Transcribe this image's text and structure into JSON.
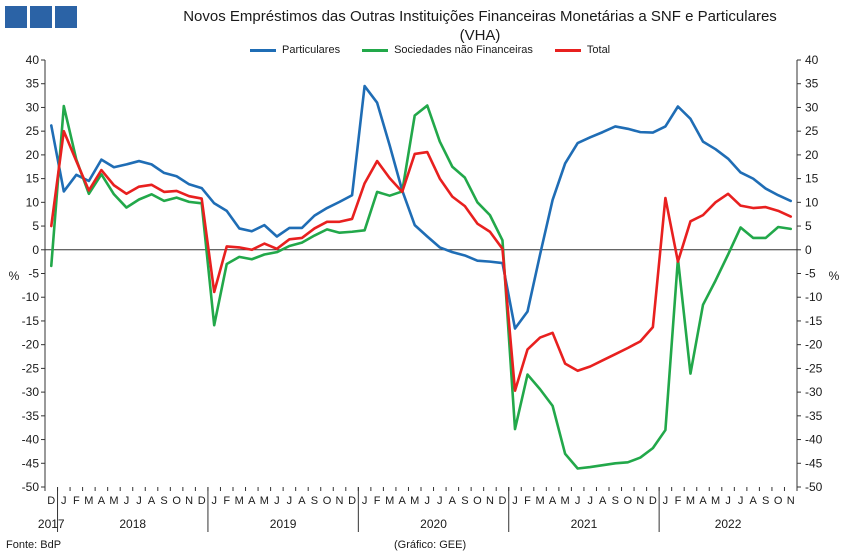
{
  "header": {
    "title_line1": "Novos Empréstimos das Outras Instituições Financeiras Monetárias a SNF e Particulares",
    "title_line2": "(VHA)"
  },
  "footer": {
    "source": "Fonte: BdP",
    "credit": "(Gráfico: GEE)"
  },
  "colors": {
    "Particulares": "#1f6db5",
    "Sociedades não Financeiras": "#22a84a",
    "Total": "#e8201f"
  },
  "chart_data": {
    "type": "line",
    "title": "Novos Empréstimos das Outras Instituições Financeiras Monetárias a SNF e Particulares (VHA)",
    "ylabel_left": "%",
    "ylabel_right": "%",
    "ylim": [
      -50,
      40
    ],
    "yticks": [
      40,
      35,
      30,
      25,
      20,
      15,
      10,
      5,
      0,
      -5,
      -10,
      -15,
      -20,
      -25,
      -30,
      -35,
      -40,
      -45,
      -50
    ],
    "legend_position": "top",
    "grid": false,
    "month_labels": [
      "D",
      "J",
      "F",
      "M",
      "A",
      "M",
      "J",
      "J",
      "A",
      "S",
      "O",
      "N",
      "D",
      "J",
      "F",
      "M",
      "A",
      "M",
      "J",
      "J",
      "A",
      "S",
      "O",
      "N",
      "D",
      "J",
      "F",
      "M",
      "A",
      "M",
      "J",
      "J",
      "A",
      "S",
      "O",
      "N",
      "D",
      "J",
      "F",
      "M",
      "A",
      "M",
      "J",
      "J",
      "A",
      "S",
      "O",
      "N",
      "D",
      "J",
      "F",
      "M",
      "A",
      "M",
      "J",
      "J",
      "A",
      "S",
      "O",
      "N"
    ],
    "year_labels": [
      {
        "label": "2017",
        "start": 0,
        "end": 0
      },
      {
        "label": "2018",
        "start": 1,
        "end": 12
      },
      {
        "label": "2019",
        "start": 13,
        "end": 24
      },
      {
        "label": "2020",
        "start": 25,
        "end": 36
      },
      {
        "label": "2021",
        "start": 37,
        "end": 48
      },
      {
        "label": "2022",
        "start": 49,
        "end": 59
      }
    ],
    "x": [
      "2017-12",
      "2018-01",
      "2018-02",
      "2018-03",
      "2018-04",
      "2018-05",
      "2018-06",
      "2018-07",
      "2018-08",
      "2018-09",
      "2018-10",
      "2018-11",
      "2018-12",
      "2019-01",
      "2019-02",
      "2019-03",
      "2019-04",
      "2019-05",
      "2019-06",
      "2019-07",
      "2019-08",
      "2019-09",
      "2019-10",
      "2019-11",
      "2019-12",
      "2020-01",
      "2020-02",
      "2020-03",
      "2020-04",
      "2020-05",
      "2020-06",
      "2020-07",
      "2020-08",
      "2020-09",
      "2020-10",
      "2020-11",
      "2020-12",
      "2021-01",
      "2021-02",
      "2021-03",
      "2021-04",
      "2021-05",
      "2021-06",
      "2021-07",
      "2021-08",
      "2021-09",
      "2021-10",
      "2021-11",
      "2021-12",
      "2022-01",
      "2022-02",
      "2022-03",
      "2022-04",
      "2022-05",
      "2022-06",
      "2022-07",
      "2022-08",
      "2022-09",
      "2022-10",
      "2022-11"
    ],
    "series": [
      {
        "name": "Particulares",
        "values": [
          26.2,
          12.3,
          15.8,
          14.5,
          19.0,
          17.4,
          18.0,
          18.7,
          18.0,
          16.2,
          15.5,
          13.8,
          13.0,
          9.8,
          8.2,
          4.5,
          3.9,
          5.2,
          2.8,
          4.6,
          4.6,
          7.2,
          8.8,
          10.1,
          11.5,
          34.5,
          31.0,
          22.0,
          12.5,
          5.2,
          2.8,
          0.5,
          -0.5,
          -1.2,
          -2.3,
          -2.5,
          -2.8,
          -16.6,
          -13.0,
          -1.0,
          10.5,
          18.2,
          22.5,
          23.7,
          24.8,
          26.0,
          25.5,
          24.8,
          24.7,
          26.0,
          30.2,
          27.6,
          22.8,
          21.2,
          19.2,
          16.3,
          15.0,
          12.9,
          11.5,
          10.3
        ]
      },
      {
        "name": "Sociedades não Financeiras",
        "values": [
          -3.4,
          30.3,
          19.0,
          11.8,
          15.9,
          11.7,
          8.9,
          10.6,
          11.7,
          10.3,
          11.0,
          10.1,
          9.8,
          -15.9,
          -3.0,
          -1.5,
          -2.0,
          -1.0,
          -0.5,
          0.8,
          1.5,
          3.0,
          4.3,
          3.6,
          3.8,
          4.1,
          12.2,
          11.4,
          12.3,
          28.3,
          30.4,
          22.8,
          17.5,
          15.2,
          10.0,
          7.3,
          2.0,
          -37.8,
          -26.3,
          -29.4,
          -32.9,
          -43.0,
          -46.1,
          -45.8,
          -45.4,
          -45.0,
          -44.8,
          -43.8,
          -41.8,
          -38.0,
          -1.9,
          -26.1,
          -11.6,
          -6.5,
          -1.0,
          4.7,
          2.5,
          2.5,
          4.8,
          4.4
        ]
      },
      {
        "name": "Total",
        "values": [
          5.0,
          25.0,
          18.7,
          12.5,
          16.8,
          13.6,
          11.8,
          13.3,
          13.7,
          12.2,
          12.4,
          11.3,
          10.8,
          -8.9,
          0.7,
          0.5,
          0.0,
          1.3,
          0.2,
          2.2,
          2.5,
          4.5,
          5.9,
          5.9,
          6.5,
          14.0,
          18.7,
          15.1,
          12.2,
          20.2,
          20.6,
          15.0,
          11.2,
          9.2,
          5.5,
          3.8,
          0.2,
          -29.7,
          -21.0,
          -18.5,
          -17.5,
          -24.0,
          -25.5,
          -24.6,
          -23.3,
          -22.0,
          -20.7,
          -19.3,
          -16.3,
          10.9,
          -2.5,
          6.0,
          7.3,
          10.0,
          11.8,
          9.3,
          8.8,
          9.0,
          8.2,
          7.0
        ]
      }
    ]
  }
}
